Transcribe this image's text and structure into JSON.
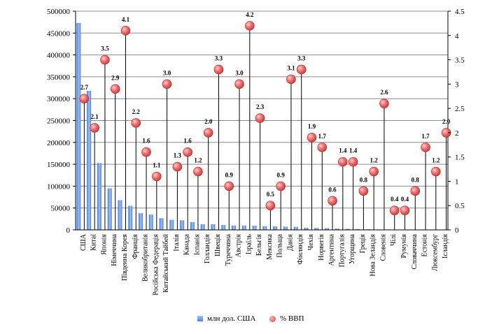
{
  "chart_data": {
    "type": "bar",
    "categories": [
      "США",
      "Китаї",
      "Японія",
      "Німеччина",
      "Південна Корея",
      "Франція",
      "Великобританія",
      "Російська Федерація",
      "Китайський Тайбей",
      "Італія",
      "Канада",
      "Іспанія",
      "Голландія",
      "Швеція",
      "Туреччина",
      "Австрія",
      "Ізраїль",
      "Бельгія",
      "Мексика",
      "Польща",
      "Данія",
      "Фінляндія",
      "Чехія",
      "Норвегія",
      "Аргентина",
      "Португалія",
      "Угорщина",
      "Греція",
      "Нова Зеландія",
      "Словенія",
      "Чілі",
      "Румунія",
      "Словаччина",
      "Естонія",
      "Люксембург",
      "Ісландія"
    ],
    "series": [
      {
        "name": "млн дол. США",
        "type": "bar",
        "axis": "left",
        "color": "#6a9ff0",
        "values": [
          473000,
          318000,
          153000,
          95000,
          68000,
          55000,
          38000,
          35000,
          27000,
          23000,
          22000,
          18000,
          13000,
          13000,
          11000,
          10000,
          10000,
          9500,
          8500,
          8000,
          7500,
          7000,
          5000,
          4500,
          4000,
          3000,
          2500,
          2000,
          1500,
          1000,
          900,
          800,
          700,
          500,
          400,
          300
        ]
      },
      {
        "name": "% ВВП",
        "type": "scatter",
        "axis": "right",
        "color": "#e05050",
        "values": [
          2.7,
          2.1,
          3.5,
          2.9,
          4.1,
          2.2,
          1.6,
          1.1,
          3.0,
          1.3,
          1.6,
          1.2,
          2.0,
          3.3,
          0.9,
          3.0,
          4.2,
          2.3,
          0.5,
          0.9,
          3.1,
          3.3,
          1.9,
          1.7,
          0.6,
          1.4,
          1.4,
          0.8,
          1.2,
          2.6,
          0.4,
          0.4,
          0.8,
          1.7,
          1.2,
          2.0
        ],
        "labels": [
          "2.7",
          "2.1",
          "3.5",
          "2.9",
          "4.1",
          "2.2",
          "1.6",
          "1.1",
          "3.0",
          "1.3",
          "1.6",
          "1.2",
          "2.0",
          "3.3",
          "0.9",
          "3.0",
          "4.2",
          "2.3",
          "0.5",
          "0.9",
          "3.1",
          "3.3",
          "1.9",
          "1.7",
          "0.6",
          "1.4",
          "1.4",
          "0.8",
          "1.2",
          "2.6",
          "0.4",
          "0.4",
          "0.8",
          "1.7",
          "1.2",
          "2.0"
        ]
      }
    ],
    "y_left": {
      "ylim": [
        0,
        500000
      ],
      "ticks": [
        "0",
        "50000",
        "100000",
        "150000",
        "200000",
        "250000",
        "300000",
        "350000",
        "400000",
        "450000",
        "500000"
      ]
    },
    "y_right": {
      "ylim": [
        0,
        4.5
      ],
      "ticks": [
        "0",
        "0.5",
        "1",
        "1.5",
        "2",
        "2.5",
        "3",
        "3.5",
        "4",
        "4.5"
      ]
    },
    "grid": "horizontal",
    "legend_position": "bottom",
    "title": "",
    "xlabel": "",
    "ylabel": ""
  },
  "legend": {
    "bar_label": "млн дол. США",
    "dot_label": "% ВВП"
  }
}
